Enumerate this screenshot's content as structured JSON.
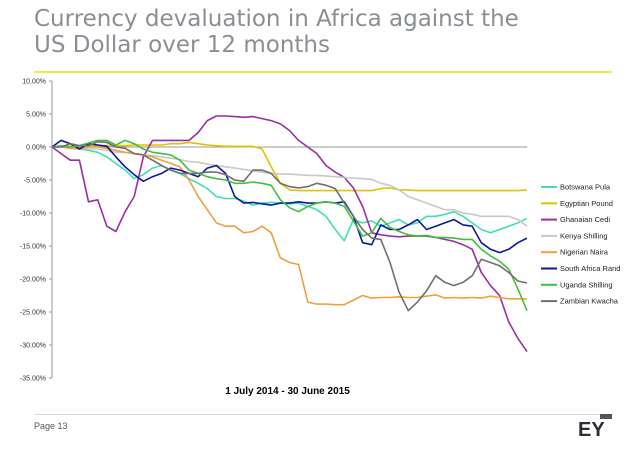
{
  "page": {
    "title_line1": "Currency devaluation in Africa against the",
    "title_line2": "US Dollar over 12 months",
    "page_label": "Page 13",
    "logo_text": "EY",
    "accent_color": "#f2e64a"
  },
  "chart_data": {
    "type": "line",
    "title": "",
    "xlabel": "1 July 2014 - 30 June 2015",
    "ylabel": "",
    "ylim": [
      -35,
      10
    ],
    "yticks": [
      10,
      5,
      0,
      -5,
      -10,
      -15,
      -20,
      -25,
      -30,
      -35
    ],
    "ytick_labels": [
      "10.00%",
      "5.00%",
      "0.00%",
      "-5.00%",
      "-10.00%",
      "-15.00%",
      "-20.00%",
      "-25.00%",
      "-30.00%",
      "-35.00%"
    ],
    "x": [
      0,
      1,
      2,
      3,
      4,
      5,
      6,
      7,
      8,
      9,
      10,
      11,
      12,
      13,
      14,
      15,
      16,
      17,
      18,
      19,
      20,
      21,
      22,
      23,
      24,
      25,
      26,
      27,
      28,
      29,
      30,
      31,
      32,
      33,
      34,
      35,
      36,
      37,
      38,
      39,
      40,
      41,
      42,
      43,
      44,
      45,
      46,
      47,
      48,
      49,
      50,
      51,
      52
    ],
    "legend_position": "right",
    "series": [
      {
        "name": "Botswana Pula",
        "color": "#3fe0b3",
        "values": [
          0,
          0.2,
          0,
          -0.3,
          -0.5,
          -0.8,
          -1.5,
          -2.5,
          -3.5,
          -4.8,
          -4.2,
          -3.2,
          -2.8,
          -3.5,
          -4,
          -4.8,
          -5.5,
          -6.3,
          -7.5,
          -7.8,
          -7.8,
          -8.2,
          -8.8,
          -8.5,
          -8.4,
          -8.5,
          -8.6,
          -8.5,
          -9,
          -9.5,
          -10.5,
          -12.5,
          -14.2,
          -11,
          -11.5,
          -11.2,
          -12,
          -11.5,
          -11,
          -11.8,
          -11.5,
          -10.5,
          -10.5,
          -10.2,
          -9.8,
          -10.5,
          -11.5,
          -12.5,
          -13,
          -12.5,
          -12,
          -11.5,
          -10.8
        ]
      },
      {
        "name": "Egyptian Pound",
        "color": "#e2c300",
        "values": [
          0,
          0.1,
          0.1,
          0.1,
          0.2,
          0.2,
          0.2,
          0.2,
          0.2,
          0.3,
          0.3,
          0.3,
          0.3,
          0.5,
          0.5,
          0.7,
          0.5,
          0.3,
          0.2,
          0.1,
          0.1,
          0.1,
          0.1,
          -0.3,
          -3,
          -5.5,
          -6.5,
          -6.6,
          -6.6,
          -6.6,
          -6.6,
          -6.6,
          -6.6,
          -6.6,
          -6.6,
          -6.6,
          -6.3,
          -6.2,
          -6.5,
          -6.5,
          -6.6,
          -6.6,
          -6.6,
          -6.6,
          -6.6,
          -6.6,
          -6.6,
          -6.6,
          -6.6,
          -6.6,
          -6.6,
          -6.6,
          -6.5
        ]
      },
      {
        "name": "Ghanaian Cedi",
        "color": "#9a2ea2",
        "values": [
          0,
          -1,
          -2,
          -2,
          -8.3,
          -8,
          -12,
          -12.8,
          -9.8,
          -7.5,
          -1.5,
          1,
          1,
          1,
          1,
          1,
          2.2,
          4,
          4.7,
          4.7,
          4.6,
          4.5,
          4.6,
          4.3,
          4,
          3.5,
          2.5,
          1,
          0,
          -1,
          -2.8,
          -3.8,
          -4.6,
          -6.2,
          -9,
          -13,
          -13.3,
          -13.5,
          -13.6,
          -13.5,
          -13.5,
          -13.5,
          -13.7,
          -14,
          -14.3,
          -14.8,
          -15.5,
          -19,
          -21,
          -22.5,
          -26.5,
          -29,
          -31
        ]
      },
      {
        "name": "Kenya Shilling",
        "color": "#c8c8c8",
        "values": [
          0,
          0.1,
          0,
          -0.2,
          -0.3,
          -0.3,
          -0.5,
          -0.8,
          -0.8,
          -1,
          -1.2,
          -1.3,
          -1.5,
          -1.7,
          -1.9,
          -2.2,
          -2.3,
          -2.6,
          -2.8,
          -3,
          -3.2,
          -3.4,
          -3.6,
          -3.8,
          -4,
          -4.1,
          -4.1,
          -4.2,
          -4.3,
          -4.3,
          -4.4,
          -4.5,
          -4.6,
          -4.7,
          -4.8,
          -4.9,
          -5.5,
          -5.8,
          -6.5,
          -7.5,
          -8,
          -8.5,
          -9,
          -9.5,
          -9.5,
          -10,
          -10.2,
          -10.5,
          -10.5,
          -10.5,
          -10.5,
          -11,
          -12
        ]
      },
      {
        "name": "Nigerian Naira",
        "color": "#f0a040",
        "values": [
          0,
          0,
          -0.2,
          -0.3,
          0,
          0,
          -0.2,
          -0.5,
          -0.8,
          -1,
          -1.2,
          -1.5,
          -2,
          -2.5,
          -3,
          -5,
          -7.5,
          -9.5,
          -11.5,
          -12,
          -12,
          -13,
          -12.8,
          -12,
          -13,
          -16.8,
          -17.5,
          -17.8,
          -23.5,
          -23.8,
          -23.8,
          -23.9,
          -23.9,
          -23.2,
          -22.5,
          -22.9,
          -22.8,
          -22.8,
          -22.7,
          -22.8,
          -22.8,
          -22.6,
          -22.4,
          -22.9,
          -22.8,
          -22.9,
          -22.8,
          -22.9,
          -22.6,
          -22.8,
          -23,
          -23,
          -23
        ]
      },
      {
        "name": "South Africa Rand",
        "color": "#0a1aa0",
        "values": [
          0,
          1,
          0.5,
          -0.3,
          0.5,
          0.3,
          0.1,
          -1.5,
          -3,
          -4.2,
          -5.2,
          -4.5,
          -4,
          -3.2,
          -3.5,
          -4,
          -4.5,
          -3.2,
          -2.8,
          -4,
          -7.5,
          -8.5,
          -8.4,
          -8.6,
          -8.8,
          -8.5,
          -8.5,
          -8.3,
          -8.5,
          -8.5,
          -8.3,
          -8.5,
          -8.3,
          -10.5,
          -14.5,
          -14.8,
          -11.8,
          -12.5,
          -12.5,
          -11.8,
          -11,
          -12.5,
          -12,
          -11.5,
          -11,
          -11.8,
          -12,
          -14.5,
          -15.5,
          -16,
          -15.5,
          -14.5,
          -13.8
        ]
      },
      {
        "name": "Uganda Shilling",
        "color": "#40c040",
        "values": [
          0,
          0.1,
          0,
          0.2,
          0.6,
          1,
          1,
          0.3,
          1,
          0.5,
          -0.3,
          -0.8,
          -1,
          -1.2,
          -2,
          -3.5,
          -4,
          -4.5,
          -4.8,
          -5,
          -5.5,
          -5.5,
          -5.3,
          -5.5,
          -5.8,
          -8,
          -9.2,
          -9.8,
          -9,
          -8.5,
          -8.3,
          -8.5,
          -9,
          -11.2,
          -13.5,
          -13,
          -10.8,
          -12.2,
          -12.8,
          -13.3,
          -13.5,
          -13.4,
          -13.7,
          -13.7,
          -13.8,
          -14,
          -14,
          -15.5,
          -16.5,
          -17.3,
          -18.5,
          -21.5,
          -24.8
        ]
      },
      {
        "name": "Zambian Kwacha",
        "color": "#707070",
        "values": [
          0,
          0,
          0.5,
          0.2,
          0.2,
          0.8,
          0.7,
          0,
          -0.2,
          -1,
          -1.2,
          -2,
          -2.8,
          -3.5,
          -4,
          -4,
          -4,
          -3.8,
          -3.8,
          -4.2,
          -5,
          -5.2,
          -3.5,
          -3.5,
          -4,
          -5.5,
          -6,
          -6.2,
          -6,
          -5.5,
          -5.8,
          -6.3,
          -8.5,
          -10.5,
          -12.5,
          -13.8,
          -14,
          -17.5,
          -22,
          -24.8,
          -23.5,
          -21.8,
          -19.5,
          -20.5,
          -21,
          -20.5,
          -19.5,
          -17,
          -17.5,
          -18,
          -19,
          -20.3,
          -20.6
        ]
      }
    ]
  }
}
